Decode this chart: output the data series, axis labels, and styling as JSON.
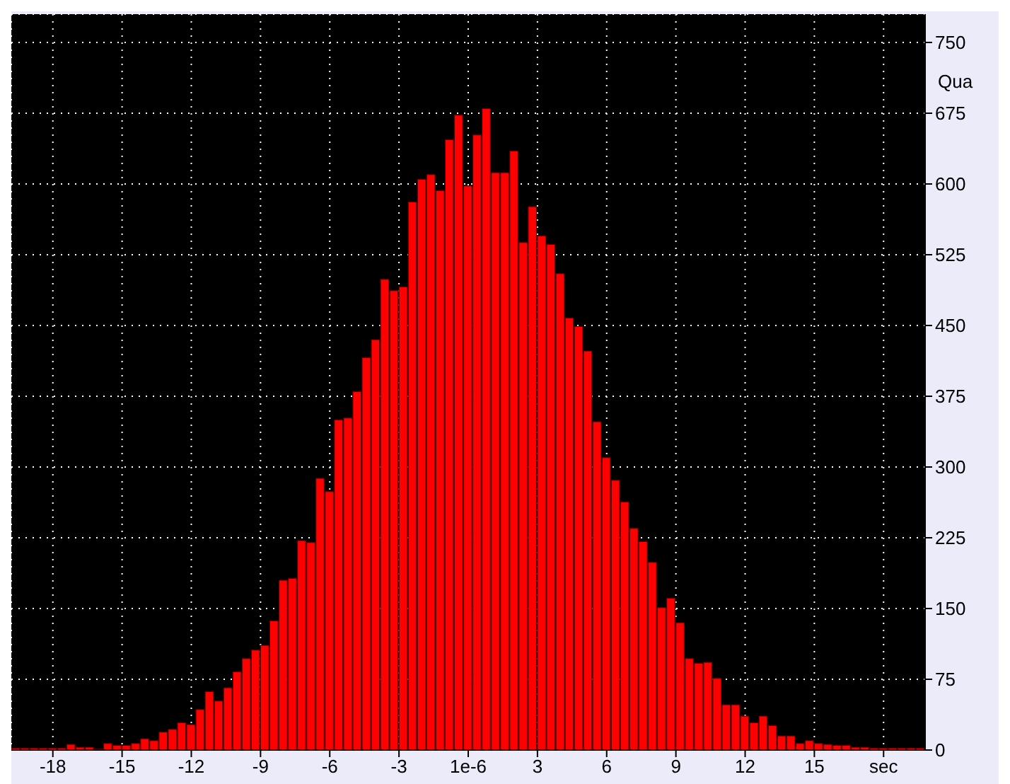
{
  "chart_data": {
    "type": "histogram",
    "ylabel": "Qua",
    "bins": [
      -19.8,
      -19.4,
      -19,
      -18.6,
      -18.2,
      -17.8,
      -17.4,
      -17,
      -16.6,
      -16.2,
      -15.8,
      -15.4,
      -15,
      -14.6,
      -14.2,
      -13.8,
      -13.4,
      -13,
      -12.6,
      -12.2,
      -11.8,
      -11.4,
      -11,
      -10.6,
      -10.2,
      -9.8,
      -9.4,
      -9,
      -8.6,
      -8.2,
      -7.8,
      -7.4,
      -7,
      -6.6,
      -6.2,
      -5.8,
      -5.4,
      -5,
      -4.6,
      -4.2,
      -3.8,
      -3.4,
      -3,
      -2.6,
      -2.2,
      -1.8,
      -1.4,
      -1,
      -0.6,
      -0.2,
      0.2,
      0.6,
      1,
      1.4,
      1.8,
      2.2,
      2.6,
      3,
      3.4,
      3.8,
      4.2,
      4.6,
      5,
      5.4,
      5.8,
      6.2,
      6.6,
      7,
      7.4,
      7.8,
      8.2,
      8.6,
      9,
      9.4,
      9.8,
      10.2,
      10.6,
      11,
      11.4,
      11.8,
      12.2,
      12.6,
      13,
      13.4,
      13.8,
      14.2,
      14.6,
      15,
      15.4,
      15.8,
      16.2,
      16.6,
      17,
      17.4,
      17.8,
      18.2,
      18.6,
      19,
      19.4,
      19.8
    ],
    "values": [
      2,
      2,
      2,
      2,
      2,
      2,
      6,
      3,
      3,
      1,
      7,
      5,
      5,
      7,
      12,
      10,
      19,
      22,
      29,
      27,
      43,
      62,
      52,
      66,
      83,
      97,
      106,
      111,
      137,
      180,
      182,
      222,
      220,
      288,
      274,
      350,
      352,
      380,
      416,
      435,
      499,
      487,
      491,
      581,
      605,
      610,
      593,
      647,
      673,
      598,
      652,
      680,
      612,
      612,
      635,
      538,
      576,
      545,
      536,
      505,
      458,
      449,
      423,
      348,
      310,
      286,
      263,
      235,
      221,
      199,
      151,
      161,
      135,
      97,
      92,
      93,
      76,
      48,
      48,
      36,
      29,
      36,
      26,
      15,
      15,
      7,
      10,
      7,
      6,
      5,
      5,
      3,
      3,
      2,
      2,
      2,
      2,
      2,
      2
    ],
    "color": "#ff0000",
    "xlim": [
      -19.8,
      19.8
    ],
    "xticks": [
      -18,
      -15,
      -12,
      -9,
      -6,
      -3,
      {
        "value": 1e-06,
        "label": "1e-6"
      },
      3,
      6,
      9,
      12,
      15,
      {
        "value": 18,
        "label": "sec"
      }
    ],
    "ylim": [
      0,
      780
    ],
    "yticks": [
      0,
      75,
      150,
      225,
      300,
      375,
      450,
      525,
      600,
      675,
      750
    ],
    "grid": true
  }
}
